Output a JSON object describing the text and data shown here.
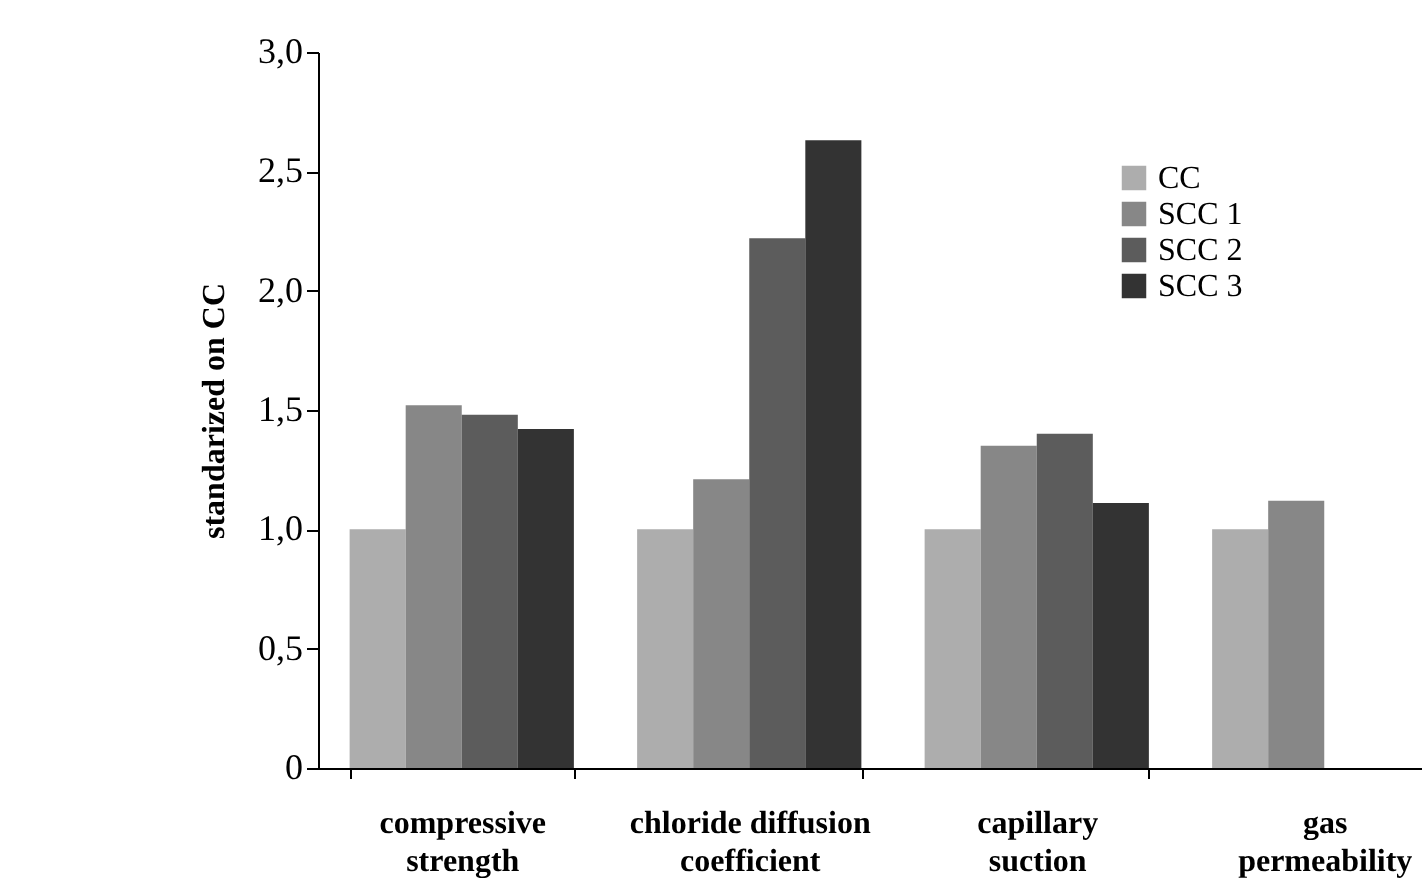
{
  "chart_data": {
    "type": "bar",
    "ylabel": "standarized on CC",
    "categories": [
      "compressive\nstrength",
      "chloride diffusion\ncoefficient",
      "capillary\nsuction",
      "gas\npermeability"
    ],
    "series": [
      {
        "name": "CC",
        "color": "#adadad",
        "values": [
          1.0,
          1.0,
          1.0,
          1.0
        ]
      },
      {
        "name": "SCC 1",
        "color": "#878787",
        "values": [
          1.52,
          1.21,
          1.35,
          1.12
        ]
      },
      {
        "name": "SCC 2",
        "color": "#5c5c5c",
        "values": [
          1.48,
          2.22,
          1.4,
          null
        ]
      },
      {
        "name": "SCC 3",
        "color": "#333333",
        "values": [
          1.42,
          2.63,
          1.11,
          null
        ]
      }
    ],
    "ylim": [
      0,
      3.0
    ],
    "yticks": [
      {
        "value": 0,
        "label": "0"
      },
      {
        "value": 0.5,
        "label": "0,5"
      },
      {
        "value": 1.0,
        "label": "1,0"
      },
      {
        "value": 1.5,
        "label": "1,5"
      },
      {
        "value": 2.0,
        "label": "2,0"
      },
      {
        "value": 2.5,
        "label": "2,5"
      },
      {
        "value": 3.0,
        "label": "3,0"
      }
    ],
    "grid": false,
    "legend": "top right"
  }
}
